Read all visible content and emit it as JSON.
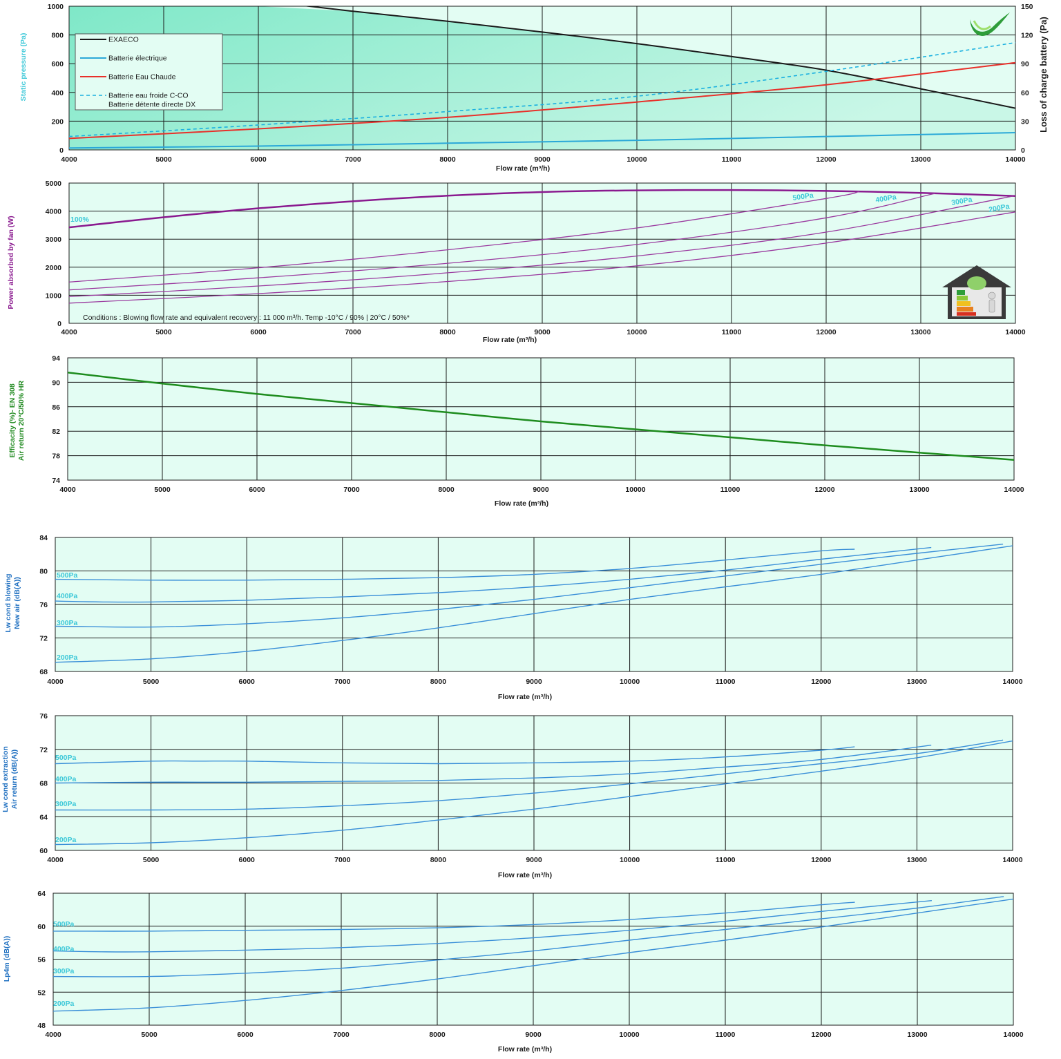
{
  "colors": {
    "plot_bg": "#e3fdf3",
    "grid": "#1a1a1a",
    "static_pressure_label": "#3cc8d8",
    "power_label": "#8a1a8f",
    "efficacity_label": "#228b22",
    "sound_label": "#1e6fc0",
    "pa_label": "#3cc8d8"
  },
  "icons": [
    "green-checkmark-logo-icon",
    "energy-label-house-icon"
  ],
  "chart_data": [
    {
      "id": "pressure",
      "type": "line",
      "xlabel": "Flow rate (m³/h)",
      "ylabel": "Static pressure (Pa)",
      "y2label": "Loss of charge battery (Pa)",
      "xlim": [
        4000,
        14000
      ],
      "ylim": [
        0,
        1000
      ],
      "y2lim": [
        0,
        150
      ],
      "xticks": [
        "4000",
        "5000",
        "6000",
        "7000",
        "8000",
        "9000",
        "10000",
        "11000",
        "12000",
        "13000",
        "14000"
      ],
      "yticks": [
        "0",
        "200",
        "400",
        "600",
        "800",
        "1000"
      ],
      "y2ticks": [
        "0",
        "30",
        "60",
        "90",
        "120",
        "150"
      ],
      "legend_position": "top-left",
      "series": [
        {
          "name": "EXAECO",
          "axis": "left",
          "color": "#1a1a1a",
          "width": 2,
          "x": [
            4000,
            5000,
            6000,
            7000,
            8000,
            9000,
            10000,
            11000,
            12000,
            13000,
            14000
          ],
          "y": [
            1150,
            1100,
            1040,
            965,
            895,
            820,
            740,
            650,
            555,
            425,
            290
          ]
        },
        {
          "name": "Batterie électrique",
          "axis": "right",
          "color": "#2aa8d8",
          "width": 2,
          "x": [
            4000,
            6000,
            8000,
            10000,
            12000,
            14000
          ],
          "y": [
            2,
            4,
            7,
            10,
            14,
            18
          ]
        },
        {
          "name": "Batterie Eau Chaude",
          "axis": "right",
          "color": "#e8302a",
          "width": 2,
          "x": [
            4000,
            6000,
            8000,
            10000,
            12000,
            14000
          ],
          "y": [
            12,
            22,
            34,
            50,
            68,
            91
          ]
        },
        {
          "name": "Batterie eau froide C-CO",
          "name2": "Batterie détente directe DX",
          "axis": "right",
          "color": "#1ab0e0",
          "width": 1.6,
          "dash": "5,4",
          "x": [
            4000,
            6000,
            8000,
            10000,
            12000,
            14000
          ],
          "y": [
            14,
            26,
            40,
            56,
            82,
            112
          ]
        }
      ]
    },
    {
      "id": "power",
      "type": "line",
      "xlabel": "Flow rate (m³/h)",
      "ylabel": "Power absorbed by fan (W)",
      "xlim": [
        4000,
        14000
      ],
      "ylim": [
        0,
        5000
      ],
      "xticks": [
        "4000",
        "5000",
        "6000",
        "7000",
        "8000",
        "9000",
        "10000",
        "11000",
        "12000",
        "13000",
        "14000"
      ],
      "yticks": [
        "0",
        "1000",
        "2000",
        "3000",
        "4000",
        "5000"
      ],
      "annotation": "Conditions : Blowing flow rate and equivalent recovery : 11 000 m³/h. Temp   -10°C / 90% | 20°C / 50%*",
      "series": [
        {
          "name": "100%",
          "color": "#8a1a8f",
          "width": 2.5,
          "x": [
            4000,
            5000,
            6000,
            7000,
            8000,
            9000,
            10000,
            11000,
            12000,
            13000,
            14000
          ],
          "y": [
            3420,
            3780,
            4100,
            4350,
            4550,
            4680,
            4740,
            4750,
            4720,
            4650,
            4540
          ]
        },
        {
          "name": "500Pa",
          "color": "#9a3a9f",
          "width": 1.3,
          "x": [
            4000,
            6000,
            8000,
            10000,
            12000,
            12350
          ],
          "y": [
            1470,
            1980,
            2620,
            3400,
            4450,
            4700
          ]
        },
        {
          "name": "400Pa",
          "color": "#9a3a9f",
          "width": 1.3,
          "x": [
            4000,
            6000,
            8000,
            10000,
            12000,
            13150
          ],
          "y": [
            1190,
            1620,
            2140,
            2810,
            3760,
            4630
          ]
        },
        {
          "name": "300Pa",
          "color": "#9a3a9f",
          "width": 1.3,
          "x": [
            4000,
            6000,
            8000,
            10000,
            12000,
            13980
          ],
          "y": [
            950,
            1330,
            1800,
            2400,
            3250,
            4540
          ]
        },
        {
          "name": "200Pa",
          "color": "#9a3a9f",
          "width": 1.3,
          "x": [
            4000,
            6000,
            8000,
            10000,
            12000,
            14000
          ],
          "y": [
            720,
            1060,
            1490,
            2050,
            2860,
            3970
          ]
        }
      ]
    },
    {
      "id": "efficacity",
      "type": "line",
      "xlabel": "Flow rate (m³/h)",
      "ylabel": "Efficacity (%)- EN 308",
      "ylabel2": "Air return 20°C/50% HR",
      "xlim": [
        4000,
        14000
      ],
      "ylim": [
        74,
        94
      ],
      "xticks": [
        "4000",
        "5000",
        "6000",
        "7000",
        "8000",
        "9000",
        "10000",
        "11000",
        "12000",
        "13000",
        "14000"
      ],
      "yticks": [
        "74",
        "78",
        "82",
        "86",
        "90",
        "94"
      ],
      "series": [
        {
          "name": "",
          "color": "#1e8c1e",
          "width": 2.5,
          "x": [
            4000,
            5000,
            6000,
            7000,
            8000,
            9000,
            10000,
            11000,
            12000,
            13000,
            14000
          ],
          "y": [
            91.6,
            89.8,
            88.1,
            86.6,
            85.1,
            83.6,
            82.3,
            81.0,
            79.7,
            78.5,
            77.3
          ]
        }
      ]
    },
    {
      "id": "lw_blowing",
      "type": "line",
      "xlabel": "Flow rate (m³/h)",
      "ylabel": "Lw cond blowing",
      "ylabel2": "New air (dB(A))",
      "xlim": [
        4000,
        14000
      ],
      "ylim": [
        68,
        84
      ],
      "xticks": [
        "4000",
        "5000",
        "6000",
        "7000",
        "8000",
        "9000",
        "10000",
        "11000",
        "12000",
        "13000",
        "14000"
      ],
      "yticks": [
        "68",
        "72",
        "76",
        "80",
        "84"
      ],
      "series": [
        {
          "name": "500Pa",
          "color": "#3a8fd8",
          "width": 1.4,
          "x": [
            4000,
            5000,
            6000,
            7000,
            8000,
            9000,
            10000,
            11000,
            12000,
            12350
          ],
          "y": [
            79.0,
            78.9,
            78.9,
            79.0,
            79.2,
            79.6,
            80.3,
            81.3,
            82.4,
            82.6
          ]
        },
        {
          "name": "400Pa",
          "color": "#3a8fd8",
          "width": 1.4,
          "x": [
            4000,
            4500,
            5000,
            6000,
            7000,
            8000,
            9000,
            10000,
            11000,
            12000,
            13150
          ],
          "y": [
            76.4,
            76.3,
            76.3,
            76.5,
            76.9,
            77.4,
            78.1,
            79.0,
            80.1,
            81.4,
            82.8
          ]
        },
        {
          "name": "300Pa",
          "color": "#3a8fd8",
          "width": 1.4,
          "x": [
            4000,
            5000,
            6000,
            7000,
            8000,
            9000,
            10000,
            11000,
            12000,
            13000,
            13900
          ],
          "y": [
            73.4,
            73.3,
            73.7,
            74.4,
            75.4,
            76.6,
            78.0,
            79.4,
            80.8,
            82.1,
            83.2
          ]
        },
        {
          "name": "200Pa",
          "color": "#3a8fd8",
          "width": 1.4,
          "x": [
            4000,
            5000,
            6000,
            7000,
            8000,
            9000,
            10000,
            11000,
            12000,
            13000,
            14000
          ],
          "y": [
            69.1,
            69.5,
            70.4,
            71.7,
            73.2,
            74.9,
            76.6,
            78.1,
            79.6,
            81.3,
            83.0
          ]
        }
      ]
    },
    {
      "id": "lw_extraction",
      "type": "line",
      "xlabel": "Flow rate (m³/h)",
      "ylabel": "Lw cond extraction",
      "ylabel2": "Air return (dB(A))",
      "xlim": [
        4000,
        14000
      ],
      "ylim": [
        60,
        76
      ],
      "xticks": [
        "4000",
        "5000",
        "6000",
        "7000",
        "8000",
        "9000",
        "10000",
        "11000",
        "12000",
        "13000",
        "14000"
      ],
      "yticks": [
        "60",
        "64",
        "68",
        "72",
        "76"
      ],
      "series": [
        {
          "name": "500Pa",
          "color": "#3a8fd8",
          "width": 1.4,
          "x": [
            4000,
            5000,
            5500,
            6000,
            7000,
            8000,
            9000,
            10000,
            11000,
            12000,
            12350
          ],
          "y": [
            70.3,
            70.6,
            70.6,
            70.6,
            70.4,
            70.3,
            70.4,
            70.6,
            71.1,
            71.9,
            72.3
          ]
        },
        {
          "name": "400Pa",
          "color": "#3a8fd8",
          "width": 1.4,
          "x": [
            4000,
            5000,
            6000,
            7000,
            8000,
            9000,
            10000,
            11000,
            12000,
            13150
          ],
          "y": [
            68.0,
            68.1,
            68.1,
            68.2,
            68.3,
            68.6,
            69.1,
            69.9,
            70.8,
            72.5
          ]
        },
        {
          "name": "300Pa",
          "color": "#3a8fd8",
          "width": 1.4,
          "x": [
            4000,
            5000,
            6000,
            7000,
            8000,
            9000,
            10000,
            11000,
            12000,
            13000,
            13900
          ],
          "y": [
            64.8,
            64.8,
            64.9,
            65.3,
            65.9,
            66.8,
            67.9,
            69.1,
            70.3,
            71.5,
            73.1
          ]
        },
        {
          "name": "200Pa",
          "color": "#3a8fd8",
          "width": 1.4,
          "x": [
            4000,
            5000,
            6000,
            7000,
            8000,
            9000,
            10000,
            11000,
            12000,
            13000,
            14000
          ],
          "y": [
            60.7,
            60.9,
            61.5,
            62.4,
            63.6,
            64.9,
            66.4,
            67.9,
            69.4,
            71.0,
            73.0
          ]
        }
      ]
    },
    {
      "id": "lp4m",
      "type": "line",
      "xlabel": "Flow rate (m³/h)",
      "ylabel": "Lp4m  (dB(A))",
      "xlim": [
        4000,
        14000
      ],
      "ylim": [
        48,
        64
      ],
      "xticks": [
        "4000",
        "5000",
        "6000",
        "7000",
        "8000",
        "9000",
        "10000",
        "11000",
        "12000",
        "13000",
        "14000"
      ],
      "yticks": [
        "48",
        "52",
        "56",
        "60",
        "64"
      ],
      "series": [
        {
          "name": "500Pa",
          "color": "#3a8fd8",
          "width": 1.4,
          "x": [
            4000,
            5000,
            6000,
            7000,
            8000,
            9000,
            10000,
            11000,
            12000,
            12350
          ],
          "y": [
            59.4,
            59.4,
            59.5,
            59.6,
            59.8,
            60.2,
            60.8,
            61.6,
            62.6,
            62.9
          ]
        },
        {
          "name": "400Pa",
          "color": "#3a8fd8",
          "width": 1.4,
          "x": [
            4000,
            4500,
            5000,
            6000,
            7000,
            8000,
            9000,
            10000,
            11000,
            12000,
            13150
          ],
          "y": [
            57.0,
            56.9,
            56.9,
            57.1,
            57.4,
            57.9,
            58.6,
            59.5,
            60.6,
            61.8,
            63.1
          ]
        },
        {
          "name": "300Pa",
          "color": "#3a8fd8",
          "width": 1.4,
          "x": [
            4000,
            5000,
            6000,
            7000,
            8000,
            9000,
            10000,
            11000,
            12000,
            13000,
            13900
          ],
          "y": [
            53.9,
            53.9,
            54.3,
            54.9,
            55.9,
            57.0,
            58.3,
            59.6,
            60.9,
            62.2,
            63.6
          ]
        },
        {
          "name": "200Pa",
          "color": "#3a8fd8",
          "width": 1.4,
          "x": [
            4000,
            5000,
            6000,
            7000,
            8000,
            9000,
            10000,
            11000,
            12000,
            13000,
            14000
          ],
          "y": [
            49.7,
            50.1,
            51.0,
            52.2,
            53.6,
            55.2,
            56.8,
            58.3,
            59.9,
            61.6,
            63.3
          ]
        }
      ]
    }
  ]
}
